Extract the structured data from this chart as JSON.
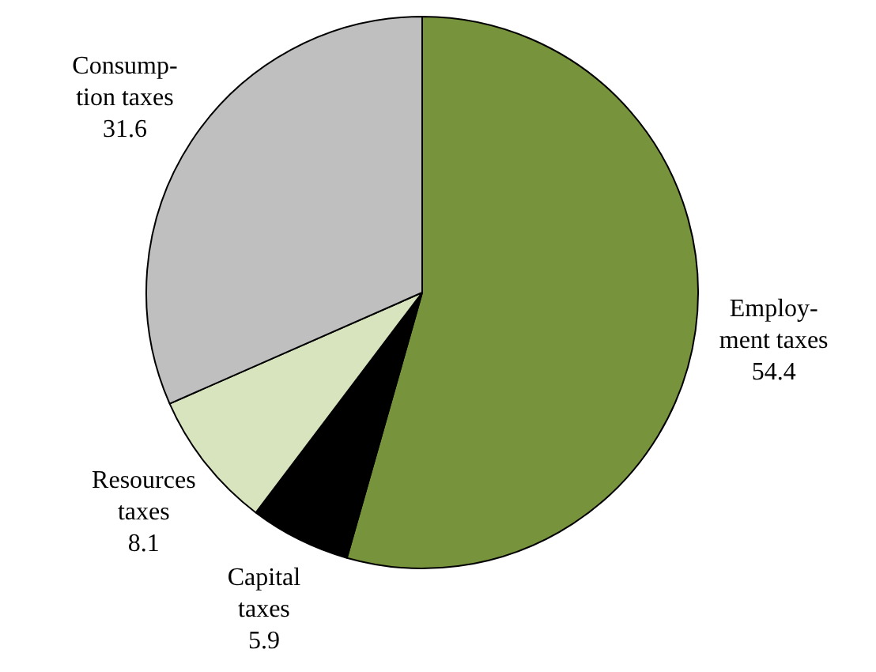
{
  "chart_data": {
    "type": "pie",
    "categories": [
      "Employ-\nment taxes",
      "Capital\ntaxes",
      "Resources\ntaxes",
      "Consump-\ntion taxes"
    ],
    "values": [
      54.4,
      5.9,
      8.1,
      31.6
    ],
    "colors": [
      "#77933c",
      "#000000",
      "#d7e4bd",
      "#bfbfbf"
    ],
    "data_labels": true,
    "legend": false
  }
}
